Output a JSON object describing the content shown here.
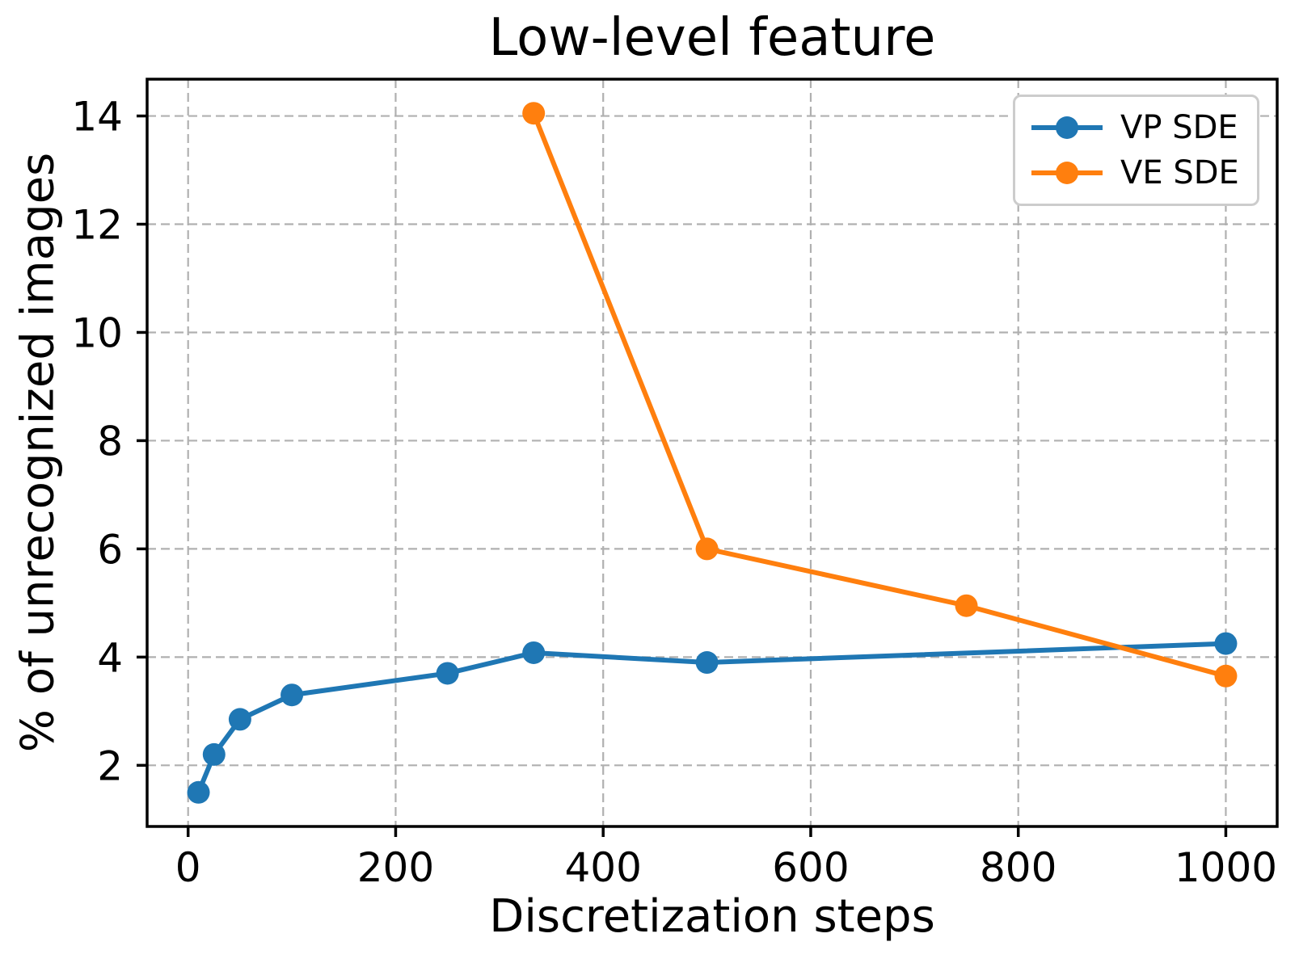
{
  "chart_data": {
    "type": "line",
    "title": "Low-level feature",
    "xlabel": "Discretization steps",
    "ylabel": "% of unrecognized images",
    "series": [
      {
        "name": "VP SDE",
        "color": "#1f77b4",
        "x": [
          10,
          25,
          50,
          100,
          250,
          333,
          500,
          1000
        ],
        "y": [
          1.5,
          2.2,
          2.85,
          3.3,
          3.7,
          4.08,
          3.9,
          4.25
        ]
      },
      {
        "name": "VE SDE",
        "color": "#ff7f0e",
        "x": [
          333,
          500,
          750,
          1000
        ],
        "y": [
          14.05,
          6.0,
          4.95,
          3.65
        ]
      }
    ],
    "xticks": [
      0,
      200,
      400,
      600,
      800,
      1000
    ],
    "yticks": [
      2,
      4,
      6,
      8,
      10,
      12,
      14
    ],
    "xlim": [
      -39.5,
      1049.5
    ],
    "ylim": [
      0.87,
      14.68
    ],
    "grid": true,
    "grid_style": "dashed",
    "grid_color": "#b0b0b0",
    "legend_position": "upper right",
    "background": "#ffffff",
    "spine_color": "#000000",
    "marker": "circle",
    "marker_radius": 14,
    "line_width": 6
  }
}
